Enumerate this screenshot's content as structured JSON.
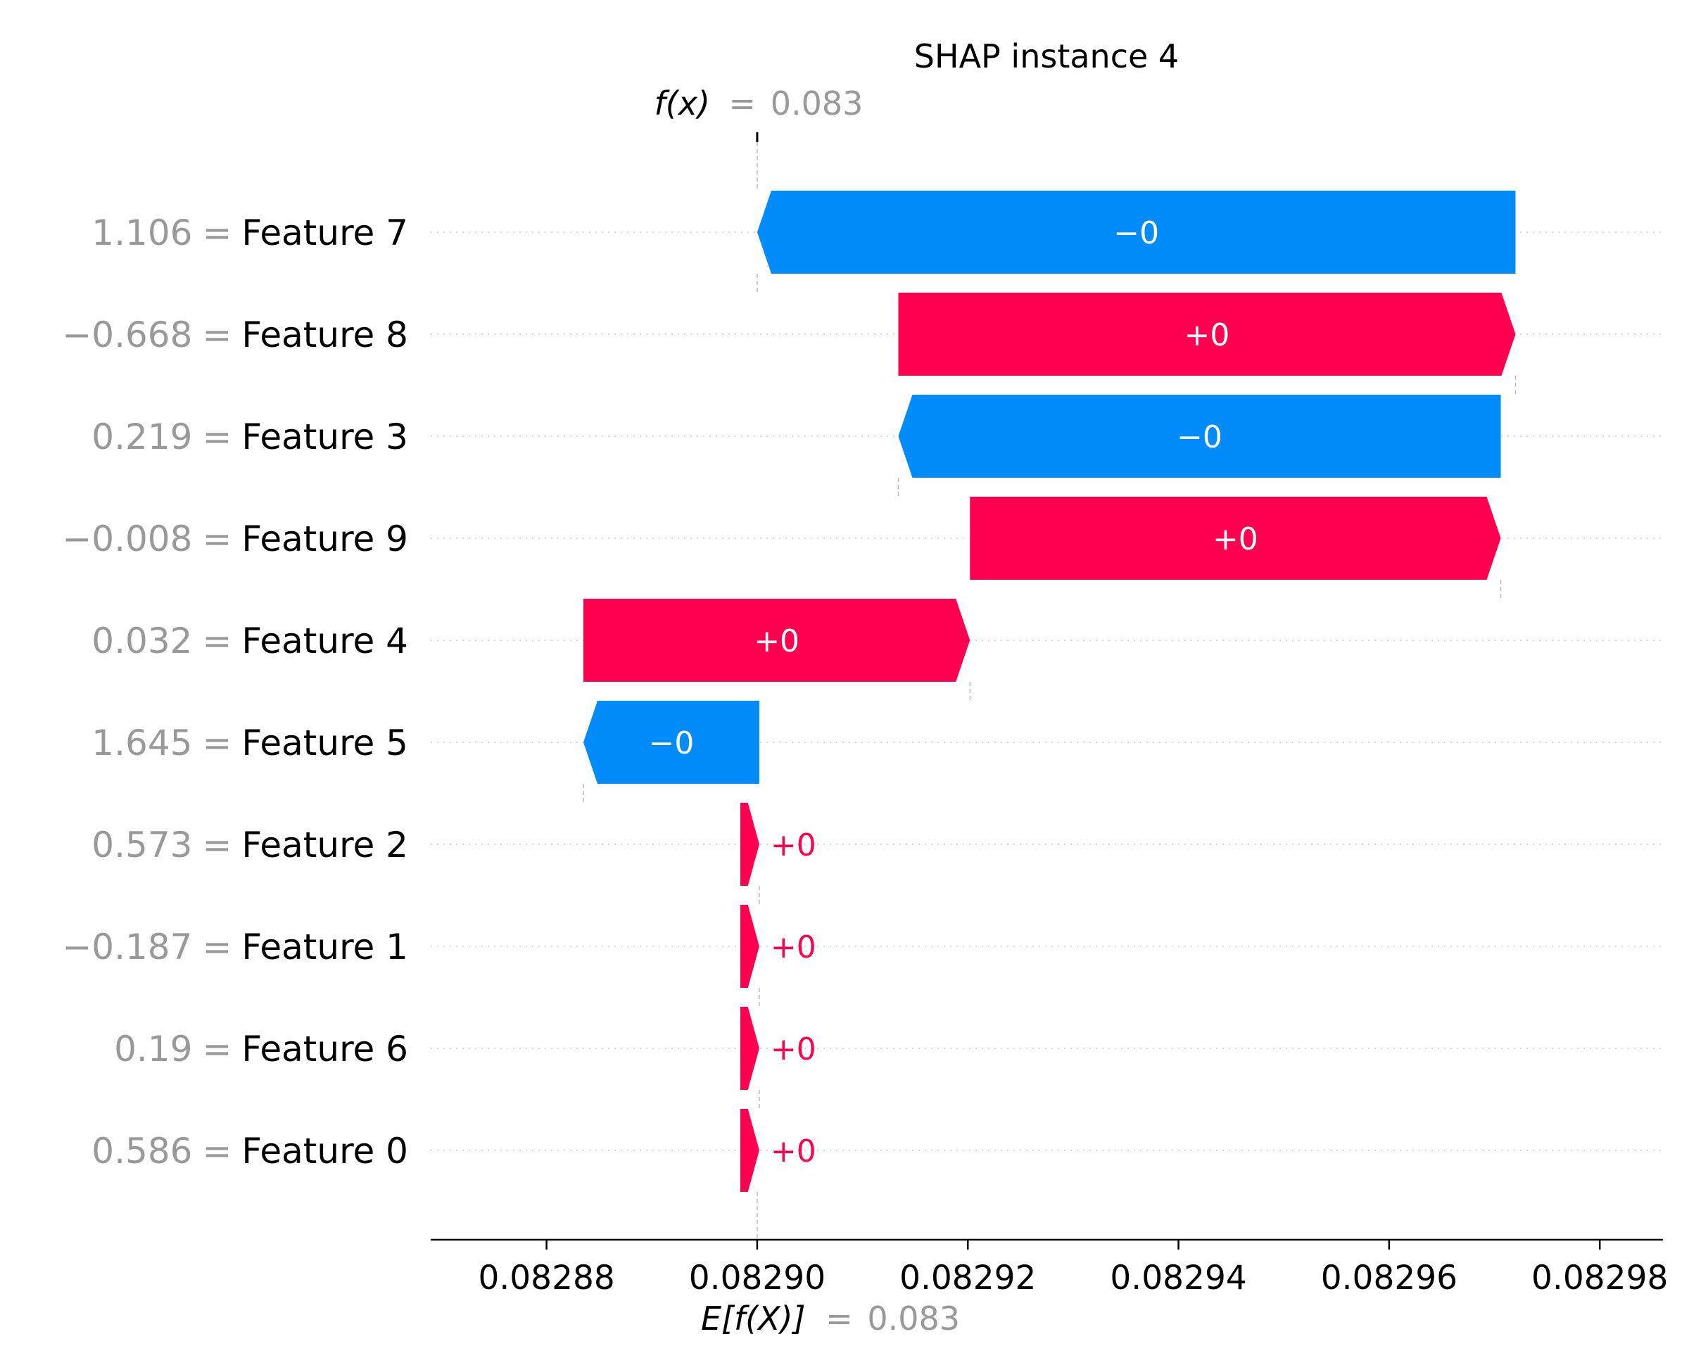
{
  "colors": {
    "positive": "#ff0051",
    "negative": "#008bfb",
    "feature_value": "#999999",
    "text": "#000000",
    "grid": "#cccccc"
  },
  "chart_data": {
    "type": "bar",
    "subtype": "shap-waterfall",
    "title": "SHAP instance 4",
    "fx": {
      "label": "f(x)",
      "equals": "=",
      "value_text": "0.083",
      "value": 0.0829
    },
    "efx": {
      "label": "E[f(X)]",
      "equals": "=",
      "value_text": "0.083",
      "value": 0.0829
    },
    "xlim": [
      0.082869,
      0.082986
    ],
    "xticks": [
      {
        "value": 0.08288,
        "label": "0.08288"
      },
      {
        "value": 0.0829,
        "label": "0.08290"
      },
      {
        "value": 0.08292,
        "label": "0.08292"
      },
      {
        "value": 0.08294,
        "label": "0.08294"
      },
      {
        "value": 0.08296,
        "label": "0.08296"
      },
      {
        "value": 0.08298,
        "label": "0.08298"
      }
    ],
    "rows": [
      {
        "feature": "Feature 7",
        "feature_value": "1.106",
        "equals": "=",
        "start": 0.082972,
        "end": 0.0829,
        "sign": "negative",
        "label": "−0"
      },
      {
        "feature": "Feature 8",
        "feature_value": "−0.668",
        "equals": "=",
        "start": 0.0829134,
        "end": 0.082972,
        "sign": "positive",
        "label": "+0"
      },
      {
        "feature": "Feature 3",
        "feature_value": "0.219",
        "equals": "=",
        "start": 0.0829706,
        "end": 0.0829134,
        "sign": "negative",
        "label": "−0"
      },
      {
        "feature": "Feature 9",
        "feature_value": "−0.008",
        "equals": "=",
        "start": 0.0829202,
        "end": 0.0829706,
        "sign": "positive",
        "label": "+0"
      },
      {
        "feature": "Feature 4",
        "feature_value": "0.032",
        "equals": "=",
        "start": 0.0828835,
        "end": 0.0829202,
        "sign": "positive",
        "label": "+0"
      },
      {
        "feature": "Feature 5",
        "feature_value": "1.645",
        "equals": "=",
        "start": 0.0829002,
        "end": 0.0828835,
        "sign": "negative",
        "label": "−0"
      },
      {
        "feature": "Feature 2",
        "feature_value": "0.573",
        "equals": "=",
        "start": 0.0828984,
        "end": 0.0829002,
        "sign": "positive",
        "label": "+0"
      },
      {
        "feature": "Feature 1",
        "feature_value": "−0.187",
        "equals": "=",
        "start": 0.0828984,
        "end": 0.0829002,
        "sign": "positive",
        "label": "+0"
      },
      {
        "feature": "Feature 6",
        "feature_value": "0.19",
        "equals": "=",
        "start": 0.0828984,
        "end": 0.0829002,
        "sign": "positive",
        "label": "+0"
      },
      {
        "feature": "Feature 0",
        "feature_value": "0.586",
        "equals": "=",
        "start": 0.0828984,
        "end": 0.0829002,
        "sign": "positive",
        "label": "+0"
      }
    ]
  }
}
